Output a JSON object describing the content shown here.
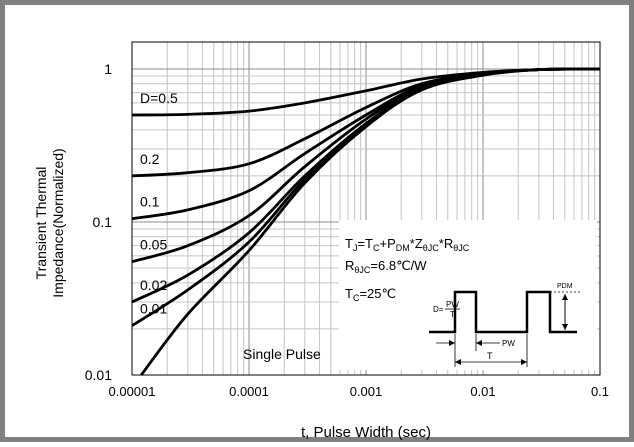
{
  "chart_data": {
    "type": "line",
    "title": "",
    "xlabel": "t, Pulse Width (sec)",
    "ylabel": [
      "Transient Thermal",
      "Impedance(Normalized)"
    ],
    "xscale": "log",
    "yscale": "log",
    "xlim": [
      1e-05,
      0.1
    ],
    "ylim": [
      0.01,
      1.5
    ],
    "grid": true,
    "x_ticks": [
      "0.00001",
      "0.0001",
      "0.001",
      "0.01",
      "0.1"
    ],
    "y_ticks": [
      "0.01",
      "0.1",
      "1"
    ],
    "series": [
      {
        "name": "D=0.5",
        "x": [
          1e-05,
          3e-05,
          0.0001,
          0.0003,
          0.001,
          0.003,
          0.01,
          0.03,
          0.1
        ],
        "y": [
          0.5,
          0.505,
          0.53,
          0.6,
          0.72,
          0.86,
          0.95,
          0.99,
          1.0
        ]
      },
      {
        "name": "0.2",
        "x": [
          1e-05,
          3e-05,
          0.0001,
          0.0003,
          0.001,
          0.003,
          0.01,
          0.03,
          0.1
        ],
        "y": [
          0.2,
          0.21,
          0.24,
          0.35,
          0.56,
          0.8,
          0.94,
          0.99,
          1.0
        ]
      },
      {
        "name": "0.1",
        "x": [
          1e-05,
          3e-05,
          0.0001,
          0.0003,
          0.001,
          0.003,
          0.01,
          0.03,
          0.1
        ],
        "y": [
          0.105,
          0.12,
          0.16,
          0.28,
          0.5,
          0.78,
          0.93,
          0.99,
          1.0
        ]
      },
      {
        "name": "0.05",
        "x": [
          1e-05,
          3e-05,
          0.0001,
          0.0003,
          0.001,
          0.003,
          0.01,
          0.03,
          0.1
        ],
        "y": [
          0.055,
          0.07,
          0.11,
          0.23,
          0.47,
          0.76,
          0.93,
          0.99,
          1.0
        ]
      },
      {
        "name": "0.02",
        "x": [
          1e-05,
          3e-05,
          0.0001,
          0.0003,
          0.001,
          0.003,
          0.01,
          0.03,
          0.1
        ],
        "y": [
          0.03,
          0.045,
          0.085,
          0.2,
          0.44,
          0.75,
          0.92,
          0.99,
          1.0
        ]
      },
      {
        "name": "0.01",
        "x": [
          1e-05,
          3e-05,
          0.0001,
          0.0003,
          0.001,
          0.003,
          0.01,
          0.03,
          0.1
        ],
        "y": [
          0.021,
          0.036,
          0.074,
          0.19,
          0.43,
          0.74,
          0.92,
          0.99,
          1.0
        ]
      },
      {
        "name": "Single Pulse",
        "x": [
          1.2e-05,
          3e-05,
          0.0001,
          0.0003,
          0.001,
          0.003,
          0.01,
          0.03,
          0.1
        ],
        "y": [
          0.01,
          0.025,
          0.065,
          0.18,
          0.42,
          0.73,
          0.91,
          0.99,
          1.0
        ]
      }
    ],
    "annotations": {
      "equation": {
        "t": "T",
        "j": "J",
        "eq": "=T",
        "c": "C",
        "plus": "+P",
        "dm": "DM",
        "star1": "*Z",
        "thjc": "θJC",
        "star2": "*R",
        "thjc2": "θJC"
      },
      "rth": {
        "r": "R",
        "thjc": "θJC",
        "rest": "=6.8℃/W"
      },
      "tc": {
        "t": "T",
        "c": "C",
        "rest": "=25℃"
      },
      "inset": {
        "pdm": "PDM",
        "d": "D=",
        "pw_num": "PW",
        "t_den": "T",
        "pw": "PW",
        "t": "T"
      }
    }
  }
}
